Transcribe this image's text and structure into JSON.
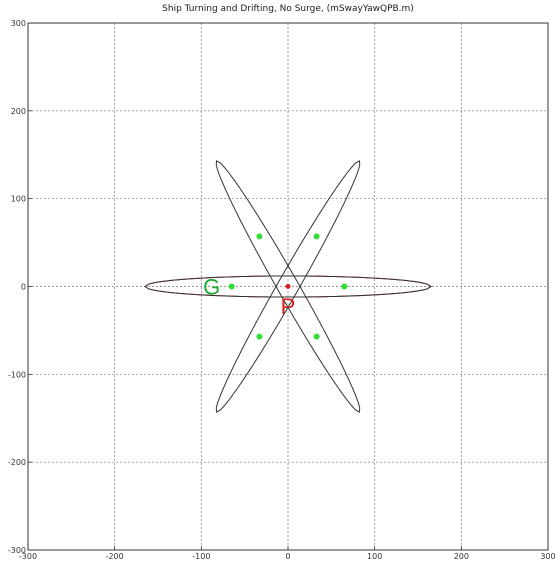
{
  "chart_data": {
    "type": "scatter",
    "title": "Ship Turning and Drifting, No Surge, (mSwayYawQPB.m)",
    "xlabel": "",
    "ylabel": "",
    "xlim": [
      -300,
      300
    ],
    "ylim": [
      -300,
      300
    ],
    "grid": true,
    "x_ticks": [
      -300,
      -200,
      -100,
      0,
      100,
      200,
      300
    ],
    "y_ticks": [
      -300,
      -200,
      -100,
      0,
      100,
      200,
      300
    ],
    "ship_outlines": [
      {
        "heading_deg": 0,
        "color": "#d42020",
        "length": 330,
        "beam": 24
      },
      {
        "heading_deg": 0,
        "color": "#333333",
        "length": 330,
        "beam": 24
      },
      {
        "heading_deg": 60,
        "color": "#333333",
        "length": 330,
        "beam": 24
      },
      {
        "heading_deg": 120,
        "color": "#333333",
        "length": 330,
        "beam": 24
      }
    ],
    "green_points": [
      {
        "x": 65,
        "y": 0
      },
      {
        "x": 33,
        "y": 57
      },
      {
        "x": -33,
        "y": 57
      },
      {
        "x": -65,
        "y": 0
      },
      {
        "x": -33,
        "y": -57
      },
      {
        "x": 33,
        "y": -57
      }
    ],
    "center_point": {
      "x": 0,
      "y": 0
    },
    "labels": [
      {
        "text": "G",
        "x": -88,
        "y": 0,
        "color": "#1faa33"
      },
      {
        "text": "P",
        "x": 0,
        "y": -22,
        "color": "#d42020"
      }
    ],
    "colors": {
      "ship": "#333333",
      "ship_highlight": "#d42020",
      "point": "#33dd33",
      "center": "#d42020"
    }
  }
}
